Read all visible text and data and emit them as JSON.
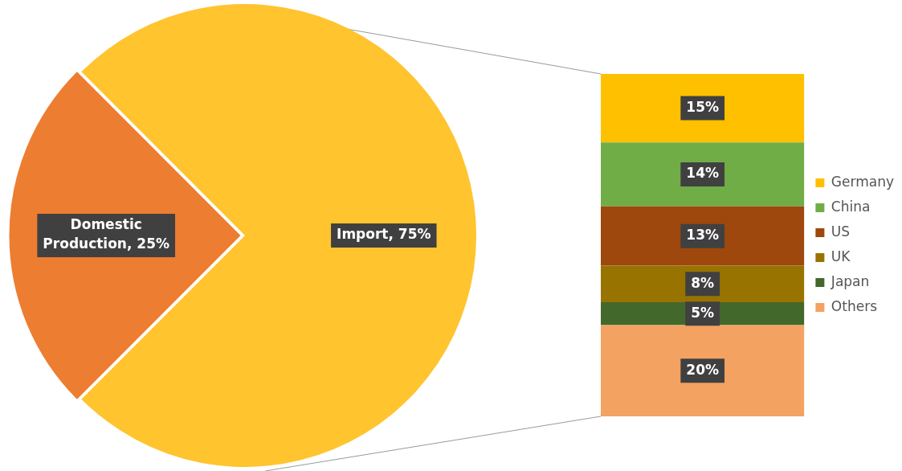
{
  "chart_data": [
    {
      "type": "pie",
      "categories": [
        "Domestic Production",
        "Import"
      ],
      "values": [
        25,
        75
      ],
      "colors": [
        "#ed7d31",
        "#ffc42e"
      ],
      "value_labels": [
        "25%",
        "75%"
      ],
      "legend": false
    },
    {
      "type": "bar",
      "stacked": true,
      "categories": [
        null
      ],
      "legend": "right",
      "series": [
        {
          "name": "Others",
          "color": "#f4a261",
          "values": [
            20
          ],
          "value_labels": [
            "20%"
          ]
        },
        {
          "name": "Japan",
          "color": "#43682b",
          "values": [
            5
          ],
          "value_labels": [
            "5%"
          ]
        },
        {
          "name": "UK",
          "color": "#997300",
          "values": [
            8
          ],
          "value_labels": [
            "8%"
          ]
        },
        {
          "name": "US",
          "color": "#9e480e",
          "values": [
            13
          ],
          "value_labels": [
            "13%"
          ]
        },
        {
          "name": "China",
          "color": "#70ad47",
          "values": [
            14
          ],
          "value_labels": [
            "14%"
          ]
        },
        {
          "name": "Germany",
          "color": "#ffc000",
          "values": [
            15
          ],
          "value_labels": [
            "15%"
          ]
        }
      ]
    }
  ]
}
